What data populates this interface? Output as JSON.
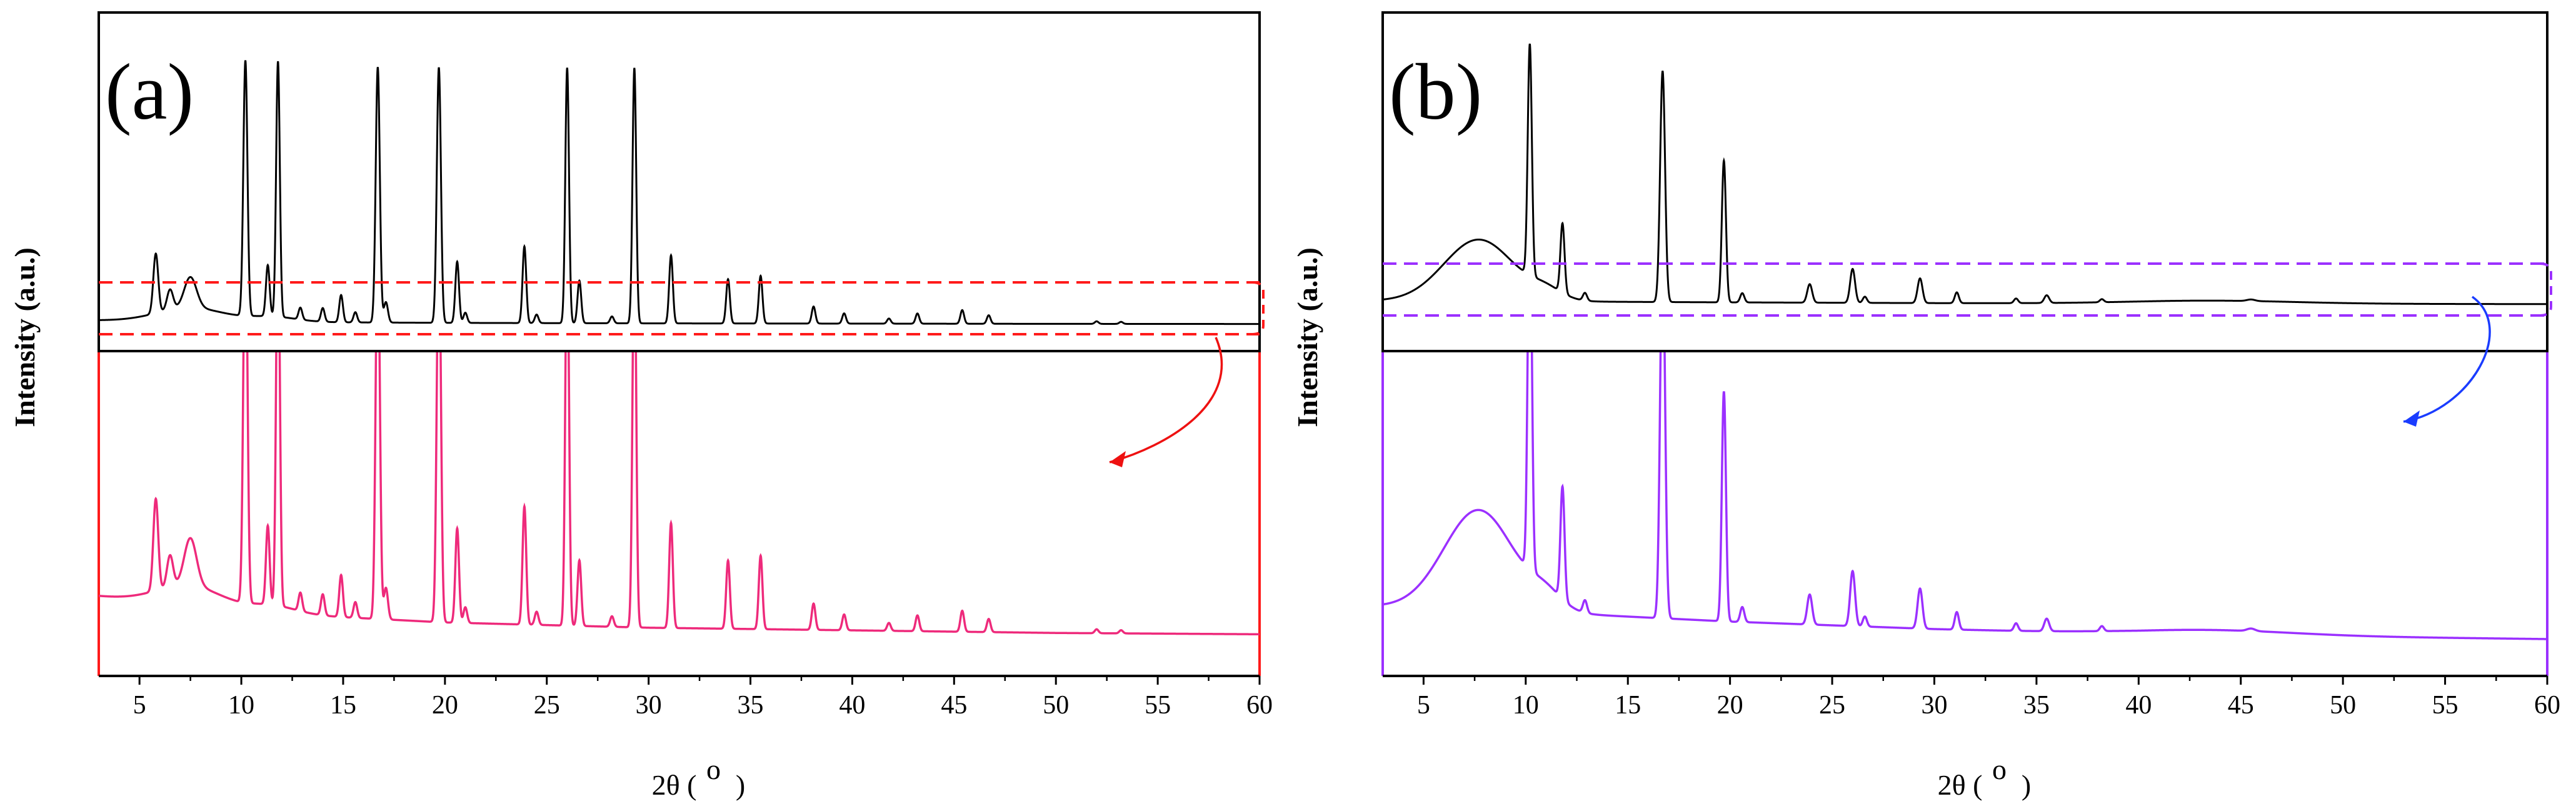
{
  "chart_data": [
    {
      "type": "line",
      "panel_label": "(a)",
      "xlabel": "2θ (",
      "xlabel_unit": "o",
      "ylabel": "Intensity (a.u.)",
      "xlim": [
        3,
        60
      ],
      "xticks": [
        "5",
        "10",
        "15",
        "20",
        "25",
        "30",
        "35",
        "40",
        "45",
        "50",
        "55",
        "60"
      ],
      "colors": {
        "inset_line": "#000000",
        "main_line": "#ee2a7b",
        "box": "#ff1a1a",
        "main_axis": "#ff1a1a",
        "arrow": "#ee1111"
      },
      "baseline": {
        "x": [
          3,
          10,
          20,
          30,
          40,
          50,
          60
        ],
        "y": [
          18,
          12,
          8,
          6,
          5,
          4,
          3.5
        ]
      },
      "bumps": [
        [
          7.5,
          1.6,
          8
        ],
        [
          11.5,
          1.2,
          3
        ]
      ],
      "peaks": [
        [
          5.8,
          0.12,
          35
        ],
        [
          6.5,
          0.15,
          12
        ],
        [
          7.5,
          0.3,
          18
        ],
        [
          10.2,
          0.1,
          150
        ],
        [
          11.3,
          0.09,
          30
        ],
        [
          11.8,
          0.09,
          150
        ],
        [
          12.9,
          0.09,
          7
        ],
        [
          14.0,
          0.09,
          8
        ],
        [
          14.9,
          0.09,
          16
        ],
        [
          15.6,
          0.09,
          6
        ],
        [
          16.7,
          0.1,
          150
        ],
        [
          17.1,
          0.1,
          12
        ],
        [
          19.7,
          0.1,
          150
        ],
        [
          20.6,
          0.09,
          36
        ],
        [
          21.0,
          0.09,
          6
        ],
        [
          23.9,
          0.09,
          45
        ],
        [
          24.5,
          0.09,
          5
        ],
        [
          26.0,
          0.09,
          150
        ],
        [
          26.6,
          0.09,
          25
        ],
        [
          28.2,
          0.09,
          4
        ],
        [
          29.3,
          0.09,
          150
        ],
        [
          31.1,
          0.09,
          40
        ],
        [
          33.9,
          0.09,
          26
        ],
        [
          35.5,
          0.09,
          28
        ],
        [
          38.1,
          0.09,
          10
        ],
        [
          39.6,
          0.09,
          6
        ],
        [
          41.8,
          0.09,
          3
        ],
        [
          43.2,
          0.09,
          6
        ],
        [
          45.4,
          0.09,
          8
        ],
        [
          46.7,
          0.09,
          5
        ],
        [
          52.0,
          0.09,
          1.5
        ],
        [
          53.2,
          0.09,
          1.2
        ]
      ],
      "inset_scale": 0.42
    },
    {
      "type": "line",
      "panel_label": "(b)",
      "xlabel": "2θ (",
      "xlabel_unit": "o",
      "ylabel": "Intensity (a.u.)",
      "xlim": [
        3,
        60
      ],
      "xticks": [
        "5",
        "10",
        "15",
        "20",
        "25",
        "30",
        "35",
        "40",
        "45",
        "50",
        "55",
        "60"
      ],
      "colors": {
        "inset_line": "#000000",
        "main_line": "#9b30ff",
        "box": "#9b30ff",
        "main_axis": "#9b30ff",
        "arrow": "#1a3cff"
      },
      "baseline": {
        "x": [
          3,
          10,
          20,
          30,
          40,
          50,
          60
        ],
        "y": [
          16,
          14,
          10,
          7,
          5,
          4,
          3
        ]
      },
      "bumps": [
        [
          7.7,
          1.7,
          40
        ],
        [
          11.0,
          0.8,
          6
        ],
        [
          43.5,
          4.0,
          2
        ]
      ],
      "peaks": [
        [
          10.2,
          0.1,
          150
        ],
        [
          11.8,
          0.1,
          45
        ],
        [
          12.9,
          0.1,
          5
        ],
        [
          16.7,
          0.12,
          150
        ],
        [
          19.7,
          0.1,
          92
        ],
        [
          20.6,
          0.1,
          6
        ],
        [
          23.9,
          0.12,
          12
        ],
        [
          26.0,
          0.12,
          22
        ],
        [
          26.6,
          0.1,
          4
        ],
        [
          29.3,
          0.12,
          16
        ],
        [
          31.1,
          0.1,
          7
        ],
        [
          34.0,
          0.1,
          3
        ],
        [
          35.5,
          0.12,
          5
        ],
        [
          38.2,
          0.1,
          2
        ],
        [
          45.5,
          0.2,
          1
        ]
      ],
      "inset_scale": 0.38
    }
  ]
}
